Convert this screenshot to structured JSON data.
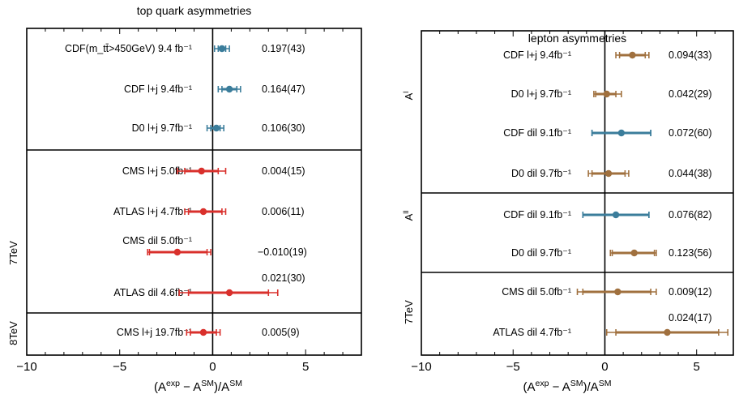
{
  "chart_data": [
    {
      "type": "scatter",
      "title": "top quark asymmetries",
      "xlabel": "(A^exp − A^SM)/A^SM",
      "xlim": [
        -10,
        8
      ],
      "xticks": [
        -10,
        -5,
        0,
        5
      ],
      "groups": [
        {
          "label": "",
          "rows": 3
        },
        {
          "label": "7TeV",
          "rows": 4
        },
        {
          "label": "8TeV",
          "rows": 1
        }
      ],
      "rows": [
        {
          "label": "CDF(m_tt̄>450GeV) 9.4 fb⁻¹",
          "value_text": "0.197(43)",
          "x": 0.5,
          "err_inner": [
            0.3,
            0.7
          ],
          "err_outer": [
            0.1,
            0.9
          ],
          "color": "#3b7d9b"
        },
        {
          "label": "CDF l+j 9.4fb⁻¹",
          "value_text": "0.164(47)",
          "x": 0.9,
          "err_inner": [
            0.5,
            1.3
          ],
          "err_outer": [
            0.3,
            1.5
          ],
          "color": "#3b7d9b"
        },
        {
          "label": "D0  l+j 9.7fb⁻¹",
          "value_text": "0.106(30)",
          "x": 0.2,
          "err_inner": [
            -0.1,
            0.4
          ],
          "err_outer": [
            -0.3,
            0.6
          ],
          "color": "#3b7d9b"
        },
        {
          "label": "CMS   l+j 5.0fb⁻¹",
          "value_text": "0.004(15)",
          "x": -0.6,
          "err_inner": [
            -1.5,
            0.3
          ],
          "err_outer": [
            -1.9,
            0.7
          ],
          "color": "#d9302c"
        },
        {
          "label": "ATLAS l+j 4.7fb⁻¹",
          "value_text": "0.006(11)",
          "x": -0.5,
          "err_inner": [
            -1.3,
            0.5
          ],
          "err_outer": [
            -1.5,
            0.7
          ],
          "color": "#d9302c"
        },
        {
          "label": "CMS   dil 5.0fb⁻¹",
          "value_text": "−0.010(19)",
          "x": -1.9,
          "err_inner": [
            -3.4,
            -0.3
          ],
          "err_outer": [
            -3.5,
            -0.1
          ],
          "color": "#d9302c"
        },
        {
          "label": "ATLAS dil 4.6fb⁻¹",
          "value_text": "0.021(30)",
          "x": 0.9,
          "err_inner": [
            -1.3,
            3.0
          ],
          "err_outer": [
            -1.8,
            3.5
          ],
          "color": "#d9302c"
        },
        {
          "label": "CMS   l+j 19.7fb⁻¹",
          "value_text": "0.005(9)",
          "x": -0.5,
          "err_inner": [
            -1.2,
            0.2
          ],
          "err_outer": [
            -1.4,
            0.4
          ],
          "color": "#d9302c"
        }
      ]
    },
    {
      "type": "scatter",
      "title": "lepton asymmetries",
      "xlabel": "(A^exp − A^SM)/A^SM",
      "xlim": [
        -10,
        7
      ],
      "xticks": [
        -10,
        -5,
        0,
        5
      ],
      "groups": [
        {
          "label": "A^l",
          "rows": 4
        },
        {
          "label": "A^ll",
          "rows": 2
        },
        {
          "label": "7TeV",
          "rows": 2
        }
      ],
      "rows": [
        {
          "label": "CDF l+j 9.4fb⁻¹",
          "value_text": "0.094(33)",
          "x": 1.5,
          "err_inner": [
            0.8,
            2.2
          ],
          "err_outer": [
            0.6,
            2.4
          ],
          "color": "#a0703e"
        },
        {
          "label": "D0  l+j 9.7fb⁻¹",
          "value_text": "0.042(29)",
          "x": 0.1,
          "err_inner": [
            -0.5,
            0.6
          ],
          "err_outer": [
            -0.6,
            0.9
          ],
          "color": "#a0703e"
        },
        {
          "label": "CDF dil 9.1fb⁻¹",
          "value_text": "0.072(60)",
          "x": 0.9,
          "err_inner": [
            -0.7,
            2.5
          ],
          "err_outer": [
            -0.7,
            2.5
          ],
          "color": "#3b7d9b"
        },
        {
          "label": "D0  dil 9.7fb⁻¹",
          "value_text": "0.044(38)",
          "x": 0.2,
          "err_inner": [
            -0.7,
            1.1
          ],
          "err_outer": [
            -0.9,
            1.3
          ],
          "color": "#a0703e"
        },
        {
          "label": "CDF dil 9.1fb⁻¹",
          "value_text": "0.076(82)",
          "x": 0.6,
          "err_inner": [
            -1.2,
            2.4
          ],
          "err_outer": [
            -1.2,
            2.4
          ],
          "color": "#3b7d9b"
        },
        {
          "label": "D0  dil 9.7fb⁻¹",
          "value_text": "0.123(56)",
          "x": 1.6,
          "err_inner": [
            0.4,
            2.7
          ],
          "err_outer": [
            0.3,
            2.8
          ],
          "color": "#a0703e"
        },
        {
          "label": "CMS   dil 5.0fb⁻¹",
          "value_text": "0.009(12)",
          "x": 0.7,
          "err_inner": [
            -1.2,
            2.5
          ],
          "err_outer": [
            -1.5,
            2.8
          ],
          "color": "#a0703e"
        },
        {
          "label": "ATLAS dil 4.7fb⁻¹",
          "value_text": "0.024(17)",
          "x": 3.4,
          "err_inner": [
            0.6,
            6.2
          ],
          "err_outer": [
            0.1,
            6.7
          ],
          "color": "#a0703e"
        }
      ]
    }
  ]
}
